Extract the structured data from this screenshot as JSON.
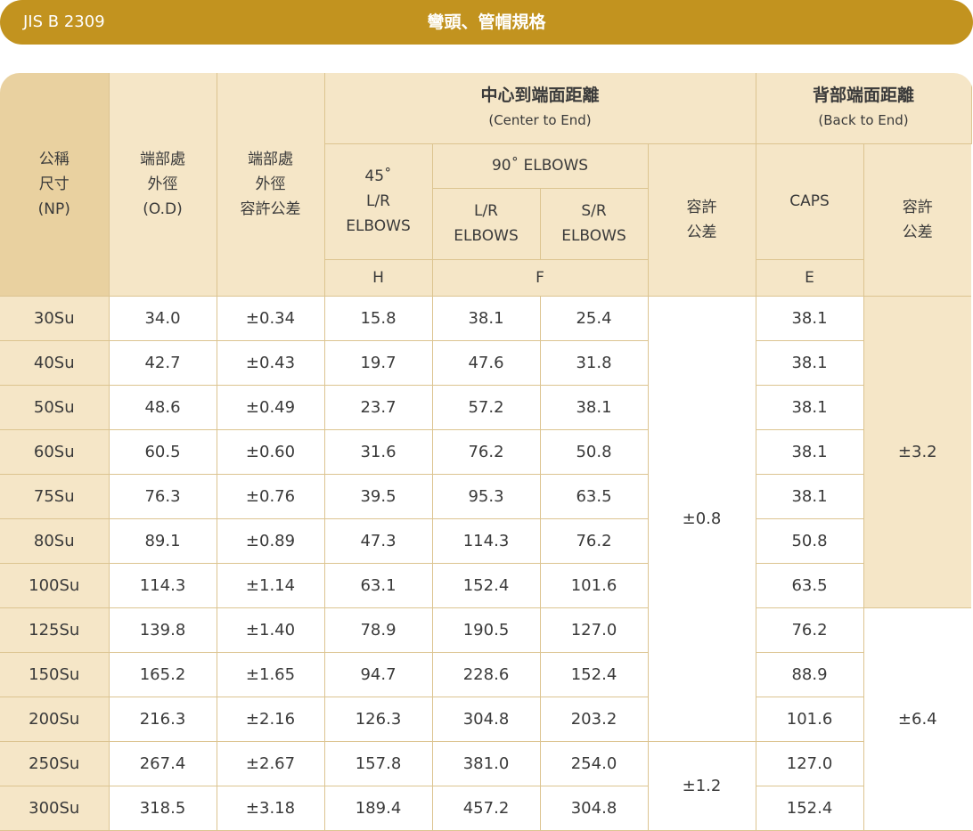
{
  "header": {
    "standard": "JIS B 2309",
    "title": "彎頭、管帽規格"
  },
  "columns": {
    "np": [
      "公稱",
      "尺寸",
      "(NP)"
    ],
    "od": [
      "端部處",
      "外徑",
      "(O.D)"
    ],
    "od_tol": [
      "端部處",
      "外徑",
      "容許公差"
    ],
    "center_to_end": {
      "title": "中心到端面距離",
      "subtitle": "(Center to End)"
    },
    "back_to_end": {
      "title": "背部端面距離",
      "subtitle": "(Back to End)"
    },
    "elbow45": [
      "45˚",
      "L/R",
      "ELBOWS"
    ],
    "elbow90": "90˚ ELBOWS",
    "lr_elbows": [
      "L/R",
      "ELBOWS"
    ],
    "sr_elbows": [
      "S/R",
      "ELBOWS"
    ],
    "tolerance": [
      "容許",
      "公差"
    ],
    "caps": "CAPS",
    "caps_tolerance": [
      "容許",
      "公差"
    ],
    "sym_h": "H",
    "sym_f": "F",
    "sym_e": "E"
  },
  "rows": [
    {
      "np": "30Su",
      "od": "34.0",
      "od_tol": "±0.34",
      "h": "15.8",
      "lr": "38.1",
      "sr": "25.4",
      "e": "38.1"
    },
    {
      "np": "40Su",
      "od": "42.7",
      "od_tol": "±0.43",
      "h": "19.7",
      "lr": "47.6",
      "sr": "31.8",
      "e": "38.1"
    },
    {
      "np": "50Su",
      "od": "48.6",
      "od_tol": "±0.49",
      "h": "23.7",
      "lr": "57.2",
      "sr": "38.1",
      "e": "38.1"
    },
    {
      "np": "60Su",
      "od": "60.5",
      "od_tol": "±0.60",
      "h": "31.6",
      "lr": "76.2",
      "sr": "50.8",
      "e": "38.1"
    },
    {
      "np": "75Su",
      "od": "76.3",
      "od_tol": "±0.76",
      "h": "39.5",
      "lr": "95.3",
      "sr": "63.5",
      "e": "38.1"
    },
    {
      "np": "80Su",
      "od": "89.1",
      "od_tol": "±0.89",
      "h": "47.3",
      "lr": "114.3",
      "sr": "76.2",
      "e": "50.8"
    },
    {
      "np": "100Su",
      "od": "114.3",
      "od_tol": "±1.14",
      "h": "63.1",
      "lr": "152.4",
      "sr": "101.6",
      "e": "63.5"
    },
    {
      "np": "125Su",
      "od": "139.8",
      "od_tol": "±1.40",
      "h": "78.9",
      "lr": "190.5",
      "sr": "127.0",
      "e": "76.2"
    },
    {
      "np": "150Su",
      "od": "165.2",
      "od_tol": "±1.65",
      "h": "94.7",
      "lr": "228.6",
      "sr": "152.4",
      "e": "88.9"
    },
    {
      "np": "200Su",
      "od": "216.3",
      "od_tol": "±2.16",
      "h": "126.3",
      "lr": "304.8",
      "sr": "203.2",
      "e": "101.6"
    },
    {
      "np": "250Su",
      "od": "267.4",
      "od_tol": "±2.67",
      "h": "157.8",
      "lr": "381.0",
      "sr": "254.0",
      "e": "127.0"
    },
    {
      "np": "300Su",
      "od": "318.5",
      "od_tol": "±3.18",
      "h": "189.4",
      "lr": "457.2",
      "sr": "304.8",
      "e": "152.4"
    }
  ],
  "merged": {
    "elbow_tol_a": "±0.8",
    "elbow_tol_b": "±1.2",
    "caps_tol_a": "±3.2",
    "caps_tol_b": "±6.4"
  }
}
